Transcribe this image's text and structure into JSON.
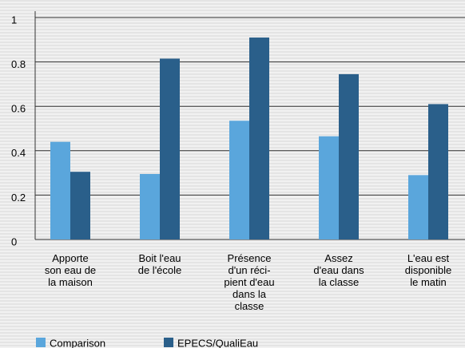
{
  "chart_data": {
    "type": "bar",
    "categories": [
      "Apporte\nson eau de\nla maison",
      "Boit l'eau\nde l'école",
      "Présence\nd'un réci-\npient d'eau\ndans la\nclasse",
      "Assez\nd'eau dans\nla classe",
      "L'eau est\ndisponible\nle matin"
    ],
    "series": [
      {
        "name": "Comparison",
        "color": "#5aa6dc",
        "values": [
          0.44,
          0.295,
          0.535,
          0.465,
          0.29
        ]
      },
      {
        "name": "EPECS/QualiEau",
        "color": "#2a5f8a",
        "values": [
          0.305,
          0.815,
          0.91,
          0.745,
          0.61
        ]
      }
    ],
    "ylim": [
      0,
      1
    ],
    "yticks": [
      0,
      0.2,
      0.4,
      0.6,
      0.8,
      1
    ],
    "grid": true,
    "legend": "bottom"
  }
}
